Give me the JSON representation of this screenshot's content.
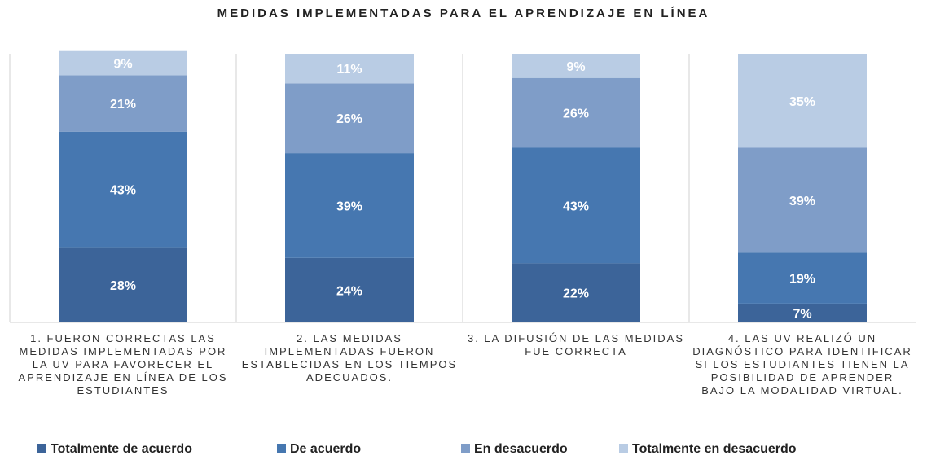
{
  "chart_data": {
    "type": "stacked_bar",
    "title": "MEDIDAS IMPLEMENTADAS PARA EL APRENDIZAJE EN LÍNEA",
    "categories": [
      "1. FUERON CORRECTAS LAS MEDIDAS IMPLEMENTADAS POR LA UV PARA FAVORECER EL APRENDIZAJE EN LÍNEA DE LOS ESTUDIANTES",
      "2. LAS MEDIDAS IMPLEMENTADAS FUERON ESTABLECIDAS EN LOS TIEMPOS ADECUADOS.",
      "3. LA DIFUSIÓN DE LAS MEDIDAS FUE CORRECTA",
      "4. LAS UV REALIZÓ UN DIAGNÓSTICO PARA IDENTIFICAR SI LOS ESTUDIANTES TIENEN LA POSIBILIDAD DE APRENDER BAJO LA MODALIDAD VIRTUAL."
    ],
    "series": [
      {
        "name": "Totalmente de acuerdo",
        "color": "#3c6499",
        "values": [
          28,
          24,
          22,
          7
        ],
        "value_labels": [
          "28%",
          "24%",
          "22%",
          "7%"
        ]
      },
      {
        "name": "De acuerdo",
        "color": "#4677b0",
        "values": [
          43,
          39,
          43,
          19
        ],
        "value_labels": [
          "43%",
          "39%",
          "43%",
          "19%"
        ]
      },
      {
        "name": "En desacuerdo",
        "color": "#7f9dc8",
        "values": [
          21,
          26,
          26,
          39
        ],
        "value_labels": [
          "21%",
          "26%",
          "26%",
          "39%"
        ]
      },
      {
        "name": "Totalmente en desacuerdo",
        "color": "#b9cce4",
        "values": [
          9,
          11,
          9,
          35
        ],
        "value_labels": [
          "9%",
          "11%",
          "9%",
          "35%"
        ]
      }
    ],
    "ylim": [
      0,
      100
    ]
  }
}
